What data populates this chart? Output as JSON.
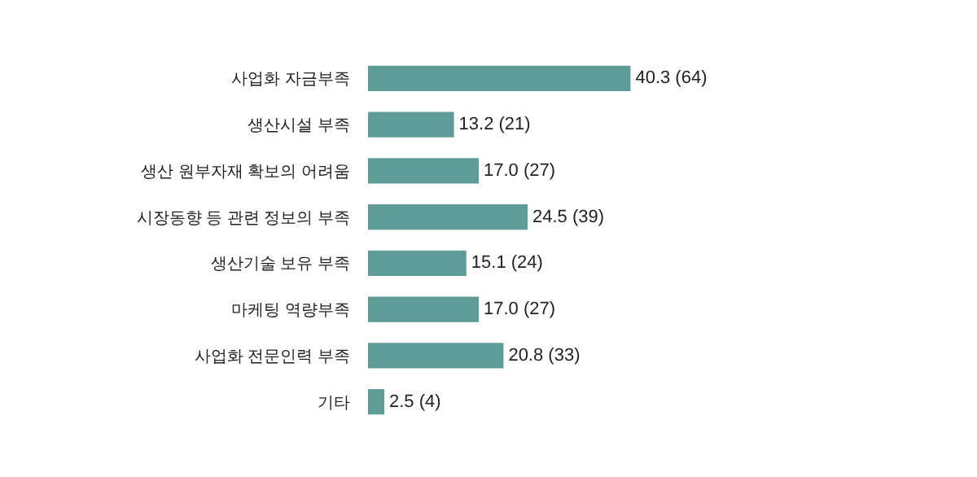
{
  "chart_data": {
    "type": "bar",
    "orientation": "horizontal",
    "categories": [
      "사업화 자금부족",
      "생산시설 부족",
      "생산 원부자재 확보의 어려움",
      "시장동향 등 관련 정보의 부족",
      "생산기술 보유 부족",
      "마케팅 역량부족",
      "사업화 전문인력 부족",
      "기타"
    ],
    "values": [
      40.3,
      13.2,
      17.0,
      24.5,
      15.1,
      17.0,
      20.8,
      2.5
    ],
    "value_labels": [
      "40.3 (64)",
      "13.2 (21)",
      "17.0 (27)",
      "24.5 (39)",
      "15.1 (24)",
      "17.0 (27)",
      "20.8 (33)",
      "2.5 (4)"
    ],
    "color": "#5e9c97"
  }
}
